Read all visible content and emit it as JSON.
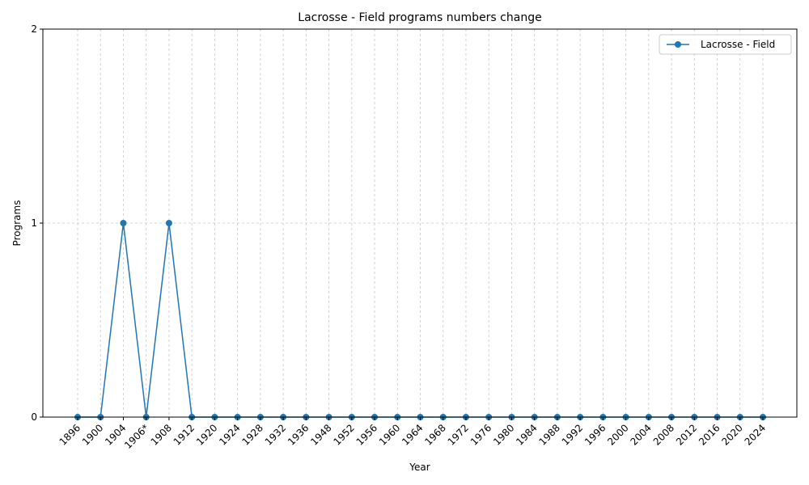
{
  "chart_data": {
    "type": "line",
    "title": "Lacrosse - Field programs numbers change",
    "xlabel": "Year",
    "ylabel": "Programs",
    "categories": [
      "1896",
      "1900",
      "1904",
      "1906*",
      "1908",
      "1912",
      "1920",
      "1924",
      "1928",
      "1932",
      "1936",
      "1948",
      "1952",
      "1956",
      "1960",
      "1964",
      "1968",
      "1972",
      "1976",
      "1980",
      "1984",
      "1988",
      "1992",
      "1996",
      "2000",
      "2004",
      "2008",
      "2012",
      "2016",
      "2020",
      "2024"
    ],
    "series": [
      {
        "name": "Lacrosse - Field",
        "values": [
          0,
          0,
          1,
          0,
          1,
          0,
          0,
          0,
          0,
          0,
          0,
          0,
          0,
          0,
          0,
          0,
          0,
          0,
          0,
          0,
          0,
          0,
          0,
          0,
          0,
          0,
          0,
          0,
          0,
          0,
          0
        ],
        "color": "#1f77b4",
        "marker": "circle"
      }
    ],
    "ylim": [
      0,
      2
    ],
    "yticks": [
      0,
      1,
      2
    ],
    "grid": true,
    "legend_position": "top-right"
  }
}
